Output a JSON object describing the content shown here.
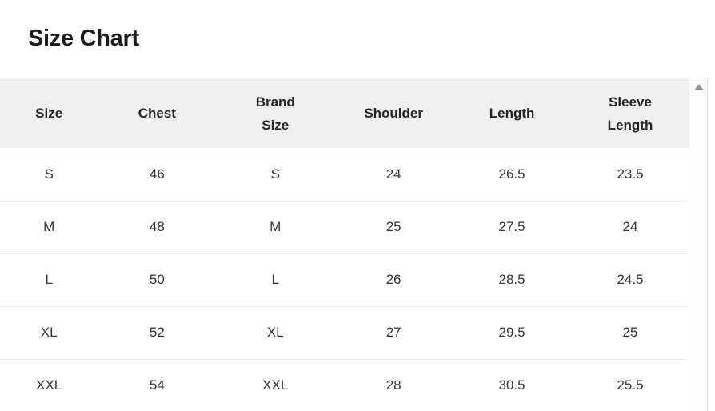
{
  "page": {
    "title": "Size Chart"
  },
  "table": {
    "columns": [
      "Size",
      "Chest",
      "Brand Size",
      "Shoulder",
      "Length",
      "Sleeve Length"
    ],
    "rows": [
      [
        "S",
        "46",
        "S",
        "24",
        "26.5",
        "23.5"
      ],
      [
        "M",
        "48",
        "M",
        "25",
        "27.5",
        "24"
      ],
      [
        "L",
        "50",
        "L",
        "26",
        "28.5",
        "24.5"
      ],
      [
        "XL",
        "52",
        "XL",
        "27",
        "29.5",
        "25"
      ],
      [
        "XXL",
        "54",
        "XXL",
        "28",
        "30.5",
        "25.5"
      ]
    ]
  },
  "scrollbar": {
    "up_arrow_icon": "triangle-up"
  },
  "colors": {
    "header_bg": "#efefef",
    "row_divider": "#eeeeee",
    "title_text": "#1b1b1e",
    "header_text": "#26262a",
    "cell_text": "#343639",
    "scroll_arrow": "#8f8f8f",
    "container_border": "#e2e2e2"
  }
}
